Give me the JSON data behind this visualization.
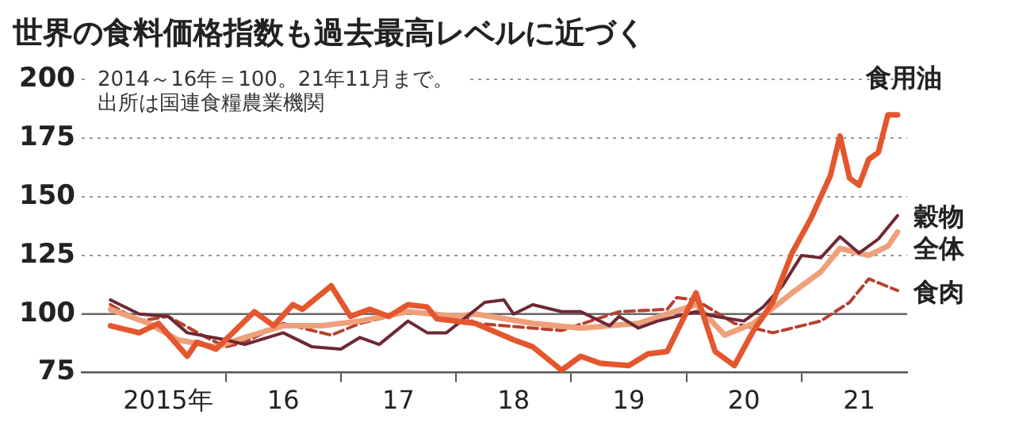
{
  "chart_data": {
    "type": "line",
    "title": "世界の食料価格指数も過去最高レベルに近づく",
    "annotations": [
      "2014～16年＝100。21年11月まで。",
      "出所は国連食糧農業機関"
    ],
    "xlim": [
      "2014-10",
      "2021-12"
    ],
    "xticks": [
      {
        "value": "2015-07",
        "label": "2015年"
      },
      {
        "value": "2016-01",
        "label": null
      },
      {
        "value": "2016-07",
        "label": "16"
      },
      {
        "value": "2017-01",
        "label": null
      },
      {
        "value": "2017-07",
        "label": "17"
      },
      {
        "value": "2018-01",
        "label": null
      },
      {
        "value": "2018-07",
        "label": "18"
      },
      {
        "value": "2019-01",
        "label": null
      },
      {
        "value": "2019-07",
        "label": "19"
      },
      {
        "value": "2020-01",
        "label": null
      },
      {
        "value": "2020-07",
        "label": "20"
      },
      {
        "value": "2021-01",
        "label": null
      },
      {
        "value": "2021-07",
        "label": "21"
      }
    ],
    "ylim": [
      75,
      200
    ],
    "yticks": [
      75,
      100,
      125,
      150,
      175,
      200
    ],
    "grid": "y",
    "legend": false,
    "marker": "none",
    "ref_lines": [
      {
        "axis": "y",
        "value": 100,
        "color": "#666666"
      }
    ],
    "series": [
      {
        "name": "食用油",
        "color": "#e4562e",
        "line_style": "solid",
        "x": [
          "2015-01",
          "2015-04",
          "2015-06",
          "2015-09",
          "2015-10",
          "2015-12",
          "2016-04",
          "2016-06",
          "2016-08",
          "2016-09",
          "2016-12",
          "2017-02",
          "2017-04",
          "2017-06",
          "2017-08",
          "2017-10",
          "2017-11",
          "2018-03",
          "2018-07",
          "2018-09",
          "2018-12",
          "2019-02",
          "2019-04",
          "2019-07",
          "2019-09",
          "2019-11",
          "2020-02",
          "2020-04",
          "2020-06",
          "2020-08",
          "2020-10",
          "2020-12",
          "2021-02",
          "2021-04",
          "2021-05",
          "2021-06",
          "2021-07",
          "2021-08",
          "2021-09",
          "2021-10",
          "2021-11"
        ],
        "values": [
          95,
          92,
          96,
          82,
          88,
          85,
          101,
          95,
          104,
          102,
          112,
          99,
          102,
          99,
          104,
          103,
          98,
          96,
          89,
          86,
          76,
          82,
          79,
          78,
          83,
          84,
          109,
          84,
          78,
          93,
          105,
          126,
          141,
          159,
          176,
          158,
          155,
          166,
          169,
          185,
          185
        ]
      },
      {
        "name": "穀物",
        "color": "#6e2834",
        "line_style": "solid",
        "x": [
          "2015-01",
          "2015-04",
          "2015-07",
          "2015-09",
          "2016-01",
          "2016-03",
          "2016-07",
          "2016-10",
          "2017-01",
          "2017-03",
          "2017-05",
          "2017-08",
          "2017-10",
          "2017-12",
          "2018-04",
          "2018-06",
          "2018-07",
          "2018-09",
          "2018-12",
          "2019-02",
          "2019-05",
          "2019-06",
          "2019-08",
          "2019-10",
          "2020-02",
          "2020-04",
          "2020-07",
          "2020-09",
          "2020-11",
          "2021-01",
          "2021-03",
          "2021-05",
          "2021-07",
          "2021-09",
          "2021-11"
        ],
        "values": [
          106,
          100,
          99,
          92,
          89,
          87,
          92,
          86,
          85,
          90,
          87,
          97,
          92,
          92,
          105,
          106,
          100,
          104,
          101,
          101,
          95,
          99,
          94,
          97,
          101,
          99,
          97,
          103,
          112,
          125,
          124,
          133,
          126,
          132,
          142
        ]
      },
      {
        "name": "全体",
        "color": "#eea07a",
        "line_style": "solid",
        "x": [
          "2015-01",
          "2015-05",
          "2015-08",
          "2015-12",
          "2016-03",
          "2016-07",
          "2016-11",
          "2017-03",
          "2017-08",
          "2018-01",
          "2018-03",
          "2018-09",
          "2019-02",
          "2019-08",
          "2020-02",
          "2020-05",
          "2020-08",
          "2020-12",
          "2021-03",
          "2021-05",
          "2021-08",
          "2021-10",
          "2021-11"
        ],
        "values": [
          102,
          96,
          89,
          86,
          90,
          95,
          95,
          97,
          101,
          99,
          100,
          96,
          94,
          96,
          104,
          91,
          96,
          109,
          118,
          128,
          125,
          129,
          135
        ]
      },
      {
        "name": "食肉",
        "color": "#b5412f",
        "line_style": "dashed",
        "x": [
          "2015-01",
          "2015-04",
          "2015-07",
          "2015-11",
          "2016-01",
          "2016-03",
          "2016-07",
          "2016-12",
          "2017-03",
          "2017-08",
          "2018-02",
          "2018-03",
          "2018-12",
          "2019-06",
          "2019-11",
          "2019-12",
          "2020-02",
          "2020-06",
          "2020-10",
          "2021-03",
          "2021-06",
          "2021-08",
          "2021-11"
        ],
        "values": [
          104,
          97,
          99,
          90,
          86,
          88,
          96,
          91,
          96,
          101,
          99,
          96,
          93,
          101,
          102,
          107,
          106,
          96,
          92,
          97,
          105,
          115,
          110
        ]
      }
    ]
  }
}
